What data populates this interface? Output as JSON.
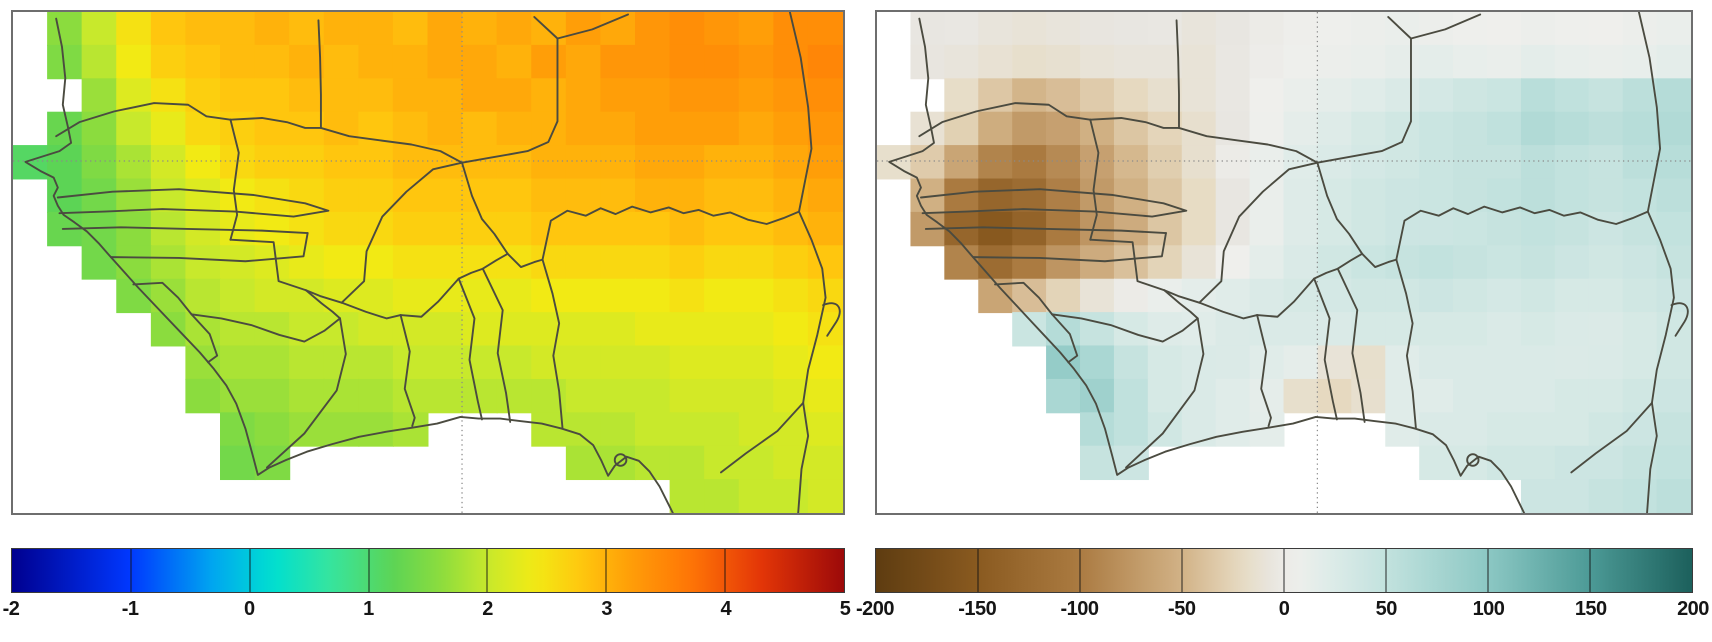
{
  "chart_data": {
    "type": "heatmap",
    "subtype": "geographic-raster-map-pair",
    "region": "West Africa",
    "grid": {
      "cols": 24,
      "rows": 15,
      "ocean_value": null
    },
    "gridlines": {
      "vertical_x_frac": 0.541,
      "horizontal_y_frac": 0.2975
    },
    "panels": [
      {
        "id": "temperature-map",
        "position": "left",
        "colormap": "rainbow-jet",
        "scale_min": -2,
        "scale_max": 5,
        "colorbar_ticks": [
          "-2",
          "-1",
          "0",
          "1",
          "2",
          "3",
          "4",
          "5"
        ],
        "colormap_stops": [
          [
            -2,
            "#00008f"
          ],
          [
            -1,
            "#0038ff"
          ],
          [
            -0.3,
            "#00a8f0"
          ],
          [
            0.2,
            "#00e0d0"
          ],
          [
            0.7,
            "#38e49c"
          ],
          [
            1.2,
            "#5cd455"
          ],
          [
            1.6,
            "#8bdc3e"
          ],
          [
            2.0,
            "#c8e92c"
          ],
          [
            2.4,
            "#f2ea14"
          ],
          [
            2.8,
            "#ffc60e"
          ],
          [
            3.2,
            "#ff9e08"
          ],
          [
            3.7,
            "#ff7606"
          ],
          [
            4.3,
            "#e33607"
          ],
          [
            5,
            "#9c0909"
          ]
        ],
        "cell_values": [
          [
            null,
            1.6,
            2.0,
            2.5,
            2.8,
            2.9,
            2.9,
            3.0,
            2.9,
            3.0,
            3.0,
            2.9,
            3.1,
            3.0,
            3.1,
            3.0,
            3.2,
            3.1,
            3.3,
            3.4,
            3.3,
            3.2,
            3.4,
            3.4
          ],
          [
            null,
            1.5,
            1.9,
            2.4,
            2.7,
            2.8,
            2.9,
            2.9,
            3.0,
            2.9,
            3.0,
            3.0,
            3.1,
            3.1,
            3.0,
            3.2,
            3.1,
            3.3,
            3.3,
            3.4,
            3.4,
            3.3,
            3.4,
            3.5
          ],
          [
            null,
            null,
            1.7,
            2.2,
            2.5,
            2.7,
            2.8,
            2.8,
            2.9,
            2.9,
            2.9,
            3.0,
            3.0,
            3.1,
            3.1,
            3.0,
            3.1,
            3.2,
            3.2,
            3.3,
            3.3,
            3.2,
            3.3,
            3.4
          ],
          [
            null,
            1.3,
            1.6,
            2.0,
            2.3,
            2.6,
            2.7,
            2.8,
            2.8,
            2.9,
            2.8,
            2.9,
            3.0,
            2.9,
            3.0,
            3.0,
            3.1,
            3.1,
            3.2,
            3.2,
            3.2,
            3.1,
            3.2,
            3.3
          ],
          [
            1.1,
            1.2,
            1.5,
            1.8,
            2.1,
            2.4,
            2.6,
            2.7,
            2.7,
            2.8,
            2.8,
            2.9,
            2.9,
            2.9,
            2.9,
            3.0,
            3.0,
            3.0,
            3.1,
            3.1,
            3.0,
            3.0,
            3.1,
            3.2
          ],
          [
            null,
            1.2,
            1.4,
            1.7,
            2.0,
            2.2,
            2.4,
            2.5,
            2.6,
            2.7,
            2.7,
            2.8,
            2.8,
            2.8,
            2.8,
            2.9,
            2.9,
            2.9,
            3.0,
            3.0,
            2.9,
            2.9,
            3.0,
            3.1
          ],
          [
            null,
            1.3,
            1.4,
            1.6,
            1.9,
            2.1,
            2.3,
            2.4,
            2.5,
            2.6,
            2.6,
            2.7,
            2.7,
            2.7,
            2.7,
            2.8,
            2.8,
            2.8,
            2.8,
            2.9,
            2.8,
            2.8,
            2.9,
            3.0
          ],
          [
            null,
            null,
            1.4,
            1.6,
            1.8,
            2.0,
            2.1,
            2.2,
            2.3,
            2.4,
            2.4,
            2.5,
            2.5,
            2.5,
            2.5,
            2.6,
            2.6,
            2.6,
            2.6,
            2.7,
            2.6,
            2.6,
            2.7,
            2.8
          ],
          [
            null,
            null,
            null,
            1.5,
            1.7,
            1.9,
            2.0,
            2.1,
            2.1,
            2.2,
            2.2,
            2.3,
            2.3,
            2.3,
            2.3,
            2.4,
            2.4,
            2.4,
            2.4,
            2.5,
            2.4,
            2.4,
            2.5,
            2.6
          ],
          [
            null,
            null,
            null,
            null,
            1.6,
            1.8,
            1.9,
            1.9,
            2.0,
            2.0,
            2.1,
            2.1,
            2.1,
            2.2,
            2.2,
            2.2,
            2.2,
            2.2,
            2.3,
            2.3,
            2.3,
            2.3,
            2.4,
            2.5
          ],
          [
            null,
            null,
            null,
            null,
            null,
            1.7,
            1.8,
            1.8,
            1.9,
            1.9,
            1.9,
            2.0,
            2.0,
            2.0,
            2.0,
            2.1,
            2.1,
            2.1,
            2.1,
            2.2,
            2.2,
            2.2,
            2.3,
            2.4
          ],
          [
            null,
            null,
            null,
            null,
            null,
            1.6,
            1.7,
            1.7,
            1.8,
            1.8,
            1.8,
            1.9,
            1.9,
            1.9,
            1.9,
            1.9,
            2.0,
            2.0,
            2.0,
            2.1,
            2.1,
            2.1,
            2.2,
            2.3
          ],
          [
            null,
            null,
            null,
            null,
            null,
            null,
            1.5,
            1.6,
            1.7,
            1.7,
            1.7,
            1.8,
            null,
            null,
            null,
            1.9,
            1.9,
            1.9,
            2.0,
            2.0,
            2.0,
            2.1,
            2.1,
            2.2
          ],
          [
            null,
            null,
            null,
            null,
            null,
            null,
            1.4,
            1.5,
            null,
            null,
            null,
            null,
            null,
            null,
            null,
            null,
            1.8,
            1.8,
            1.9,
            1.9,
            2.0,
            2.0,
            2.1,
            2.1
          ],
          [
            null,
            null,
            null,
            null,
            null,
            null,
            null,
            null,
            null,
            null,
            null,
            null,
            null,
            null,
            null,
            null,
            null,
            null,
            null,
            1.9,
            1.9,
            2.0,
            2.0,
            2.1
          ]
        ]
      },
      {
        "id": "precipitation-map",
        "position": "right",
        "colormap": "brown-teal",
        "scale_min": -200,
        "scale_max": 200,
        "colorbar_ticks": [
          "-200",
          "-150",
          "-100",
          "-50",
          "0",
          "50",
          "100",
          "150",
          "200"
        ],
        "colormap_stops": [
          [
            -200,
            "#5e3c10"
          ],
          [
            -150,
            "#8a5a20"
          ],
          [
            -100,
            "#ab7b41"
          ],
          [
            -50,
            "#d2b286"
          ],
          [
            -20,
            "#e7dcc4"
          ],
          [
            -5,
            "#e8e6e1"
          ],
          [
            5,
            "#efefec"
          ],
          [
            20,
            "#e0ece9"
          ],
          [
            50,
            "#c2e2de"
          ],
          [
            100,
            "#8cc8c4"
          ],
          [
            150,
            "#4c9a96"
          ],
          [
            200,
            "#1c605c"
          ]
        ],
        "cell_values": [
          [
            null,
            -5,
            -4,
            -8,
            -10,
            -8,
            -6,
            -5,
            -4,
            -8,
            -5,
            0,
            4,
            6,
            8,
            10,
            8,
            6,
            5,
            8,
            6,
            5,
            8,
            10
          ],
          [
            null,
            -6,
            -8,
            -12,
            -16,
            -14,
            -10,
            -8,
            -8,
            -10,
            -4,
            2,
            6,
            8,
            10,
            14,
            16,
            12,
            10,
            16,
            12,
            10,
            12,
            16
          ],
          [
            null,
            null,
            -18,
            -35,
            -48,
            -42,
            -32,
            -22,
            -15,
            -10,
            -4,
            5,
            10,
            15,
            20,
            26,
            32,
            38,
            42,
            58,
            52,
            46,
            56,
            62
          ],
          [
            null,
            -12,
            -28,
            -55,
            -72,
            -66,
            -52,
            -36,
            -25,
            -15,
            -5,
            6,
            15,
            22,
            30,
            36,
            42,
            46,
            52,
            66,
            60,
            55,
            60,
            66
          ],
          [
            -16,
            -32,
            -62,
            -92,
            -102,
            -86,
            -66,
            -46,
            -30,
            -15,
            0,
            10,
            20,
            26,
            32,
            36,
            42,
            46,
            46,
            56,
            50,
            46,
            56,
            60
          ],
          [
            null,
            -52,
            -102,
            -132,
            -122,
            -96,
            -72,
            -52,
            -36,
            -20,
            -5,
            10,
            22,
            30,
            36,
            40,
            42,
            46,
            50,
            56,
            50,
            46,
            50,
            56
          ],
          [
            null,
            -72,
            -132,
            -152,
            -136,
            -102,
            -76,
            -56,
            -36,
            -20,
            -5,
            10,
            22,
            30,
            36,
            40,
            40,
            42,
            46,
            50,
            46,
            40,
            46,
            50
          ],
          [
            null,
            null,
            -92,
            -122,
            -100,
            -76,
            -56,
            -40,
            -26,
            -10,
            5,
            16,
            26,
            36,
            42,
            46,
            50,
            46,
            42,
            46,
            40,
            36,
            40,
            46
          ],
          [
            null,
            null,
            null,
            -62,
            -42,
            -26,
            -10,
            0,
            10,
            16,
            20,
            26,
            30,
            32,
            36,
            36,
            40,
            36,
            32,
            36,
            30,
            30,
            36,
            40
          ],
          [
            null,
            null,
            null,
            null,
            42,
            62,
            46,
            30,
            22,
            20,
            25,
            26,
            26,
            26,
            30,
            30,
            30,
            30,
            26,
            30,
            26,
            25,
            30,
            36
          ],
          [
            null,
            null,
            null,
            null,
            null,
            92,
            72,
            46,
            30,
            26,
            25,
            20,
            15,
            -10,
            -16,
            20,
            26,
            26,
            26,
            26,
            25,
            26,
            30,
            36
          ],
          [
            null,
            null,
            null,
            null,
            null,
            72,
            82,
            52,
            30,
            26,
            20,
            15,
            -16,
            -22,
            -15,
            20,
            20,
            26,
            26,
            26,
            30,
            30,
            36,
            40
          ],
          [
            null,
            null,
            null,
            null,
            null,
            null,
            62,
            52,
            36,
            26,
            20,
            16,
            null,
            null,
            null,
            20,
            26,
            26,
            30,
            30,
            30,
            36,
            40,
            46
          ],
          [
            null,
            null,
            null,
            null,
            null,
            null,
            46,
            40,
            null,
            null,
            null,
            null,
            null,
            null,
            null,
            null,
            30,
            30,
            36,
            36,
            40,
            40,
            46,
            50
          ],
          [
            null,
            null,
            null,
            null,
            null,
            null,
            null,
            null,
            null,
            null,
            null,
            null,
            null,
            null,
            null,
            null,
            null,
            null,
            null,
            40,
            40,
            46,
            50,
            56
          ]
        ]
      }
    ]
  }
}
